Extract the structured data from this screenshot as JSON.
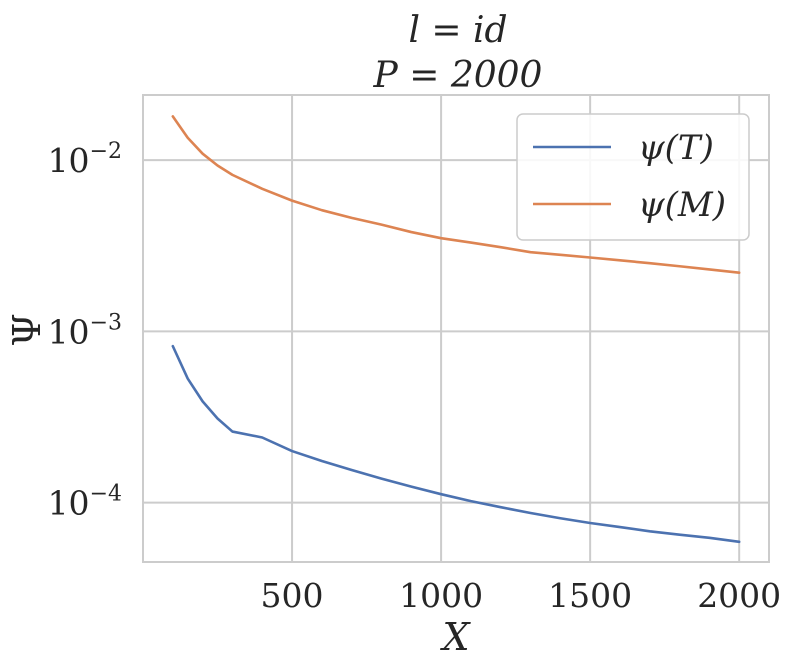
{
  "chart_data": {
    "type": "line",
    "title_lines": [
      "l = id",
      "P = 2000"
    ],
    "xlabel": "X",
    "ylabel": "Ψ",
    "yscale": "log",
    "xlim": [
      0,
      2100
    ],
    "ylim": [
      4.5e-05,
      0.024
    ],
    "xticks": [
      500,
      1000,
      1500,
      2000
    ],
    "xtick_labels": [
      "500",
      "1000",
      "1500",
      "2000"
    ],
    "yticks": [
      0.0001,
      0.001,
      0.01
    ],
    "ytick_labels": [
      {
        "base": "10",
        "exp": "−4"
      },
      {
        "base": "10",
        "exp": "−3"
      },
      {
        "base": "10",
        "exp": "−2"
      }
    ],
    "grid": true,
    "legend_position": "top-right",
    "series": [
      {
        "name": "ψ(T)",
        "color": "#4c72b0",
        "x": [
          100,
          150,
          200,
          250,
          300,
          400,
          500,
          600,
          700,
          800,
          900,
          1000,
          1100,
          1200,
          1300,
          1400,
          1500,
          1600,
          1700,
          1800,
          1900,
          2000
        ],
        "y": [
          0.00082,
          0.00053,
          0.00039,
          0.00031,
          0.00026,
          0.00024,
          0.0002,
          0.000175,
          0.000155,
          0.000138,
          0.000124,
          0.000112,
          0.000102,
          9.4e-05,
          8.7e-05,
          8.1e-05,
          7.6e-05,
          7.2e-05,
          6.8e-05,
          6.5e-05,
          6.23e-05,
          5.9e-05
        ]
      },
      {
        "name": "ψ(M)",
        "color": "#dd8452",
        "x": [
          100,
          150,
          200,
          250,
          300,
          400,
          500,
          600,
          700,
          800,
          900,
          1000,
          1100,
          1200,
          1300,
          1400,
          1500,
          1600,
          1700,
          1800,
          1900,
          2000
        ],
        "y": [
          0.018,
          0.0135,
          0.0109,
          0.0093,
          0.0082,
          0.0068,
          0.0058,
          0.0051,
          0.0046,
          0.0042,
          0.0038,
          0.0035,
          0.0033,
          0.0031,
          0.0029,
          0.0028,
          0.0027,
          0.0026,
          0.0025,
          0.0024,
          0.0023,
          0.0022
        ]
      }
    ]
  }
}
